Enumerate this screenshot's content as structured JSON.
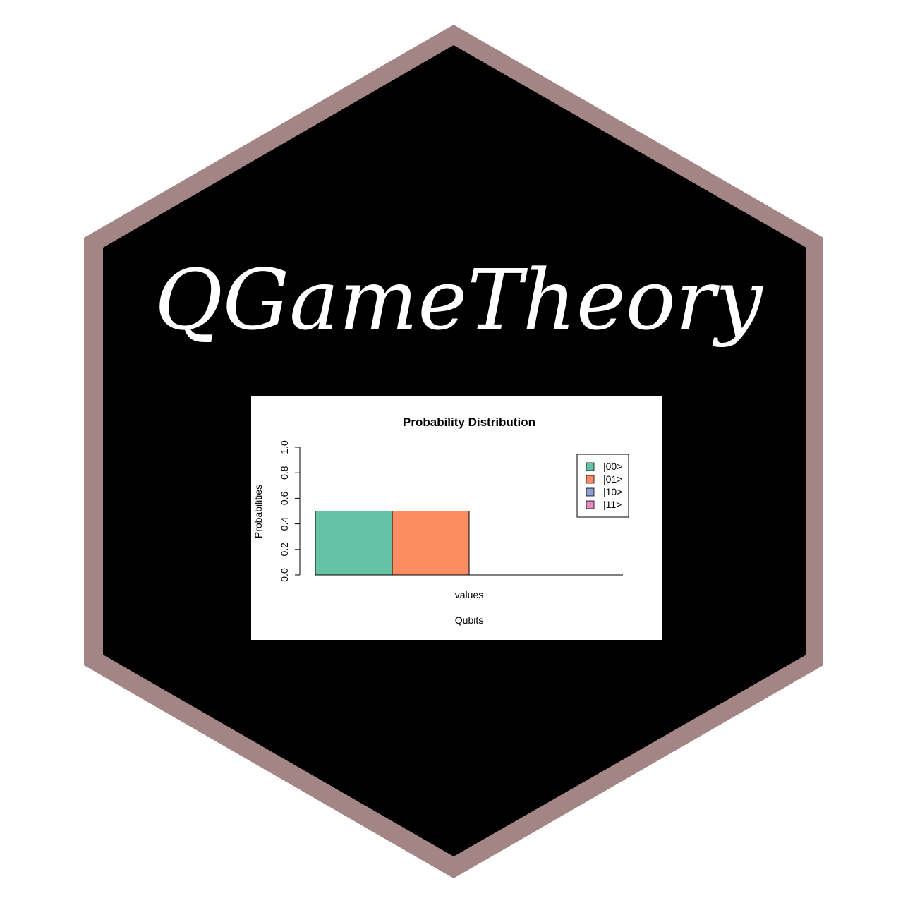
{
  "logo": {
    "title": "QGameTheory",
    "border_color": "#a38585",
    "fill_color": "#000000",
    "title_color": "#ffffff"
  },
  "chart_data": {
    "type": "bar",
    "title": "Probability Distribution",
    "xlabel": "Qubits",
    "ylabel": "Probabilities",
    "group_label": "values",
    "categories": [
      "|00>",
      "|01>",
      "|10>",
      "|11>"
    ],
    "values": [
      0.5,
      0.5,
      0.0,
      0.0
    ],
    "colors": [
      "#66c2a5",
      "#fc8d62",
      "#8da0cb",
      "#e78ac3"
    ],
    "ylim": [
      0,
      1.0
    ],
    "yticks": [
      "0.0",
      "0.2",
      "0.4",
      "0.6",
      "0.8",
      "1.0"
    ],
    "grid": false,
    "legend_position": "top-right"
  }
}
